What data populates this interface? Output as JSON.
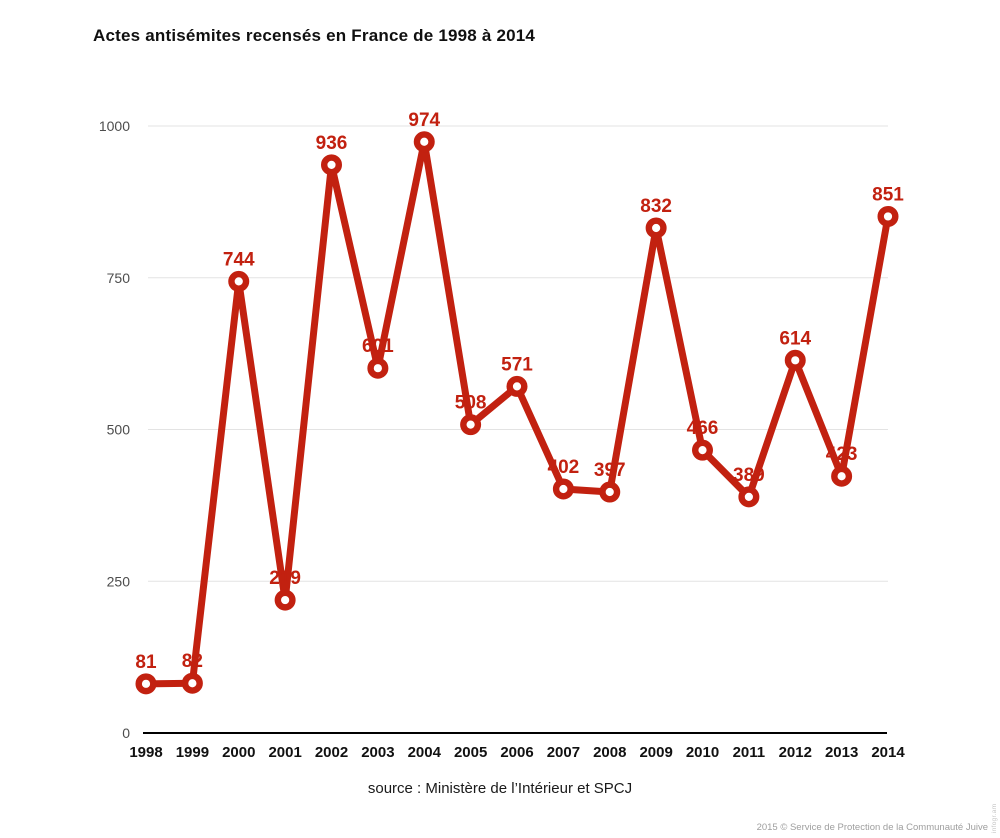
{
  "title": "Actes antisémites recensés en France de 1998 à 2014",
  "source": "source : Ministère de l’Intérieur et SPCJ",
  "footer": {
    "copyright": "2015 © Service de Protection de la Communauté Juive",
    "watermark": "infogr.am"
  },
  "colors": {
    "line": "#c22110",
    "grid": "#e3e3e3",
    "axis": "#000000",
    "tick_text": "#4d4d4d",
    "xtick_text": "#111111",
    "title_text": "#101010",
    "muted": "#9e9e9e",
    "marker_fill": "#ffffff"
  },
  "chart_data": {
    "type": "line",
    "title": "Actes antisémites recensés en France de 1998 à 2014",
    "x": [
      1998,
      1999,
      2000,
      2001,
      2002,
      2003,
      2004,
      2005,
      2006,
      2007,
      2008,
      2009,
      2010,
      2011,
      2012,
      2013,
      2014
    ],
    "values": [
      81,
      82,
      744,
      219,
      936,
      601,
      974,
      508,
      571,
      402,
      397,
      832,
      466,
      389,
      614,
      423,
      851
    ],
    "yticks": [
      0,
      250,
      500,
      750,
      1000
    ],
    "ylim": [
      0,
      1000
    ],
    "xlabel": "",
    "ylabel": "",
    "grid": "horizontal",
    "legend": "none",
    "marker": "open-circle",
    "point_labels": true,
    "source": "source : Ministère de l’Intérieur et SPCJ"
  }
}
